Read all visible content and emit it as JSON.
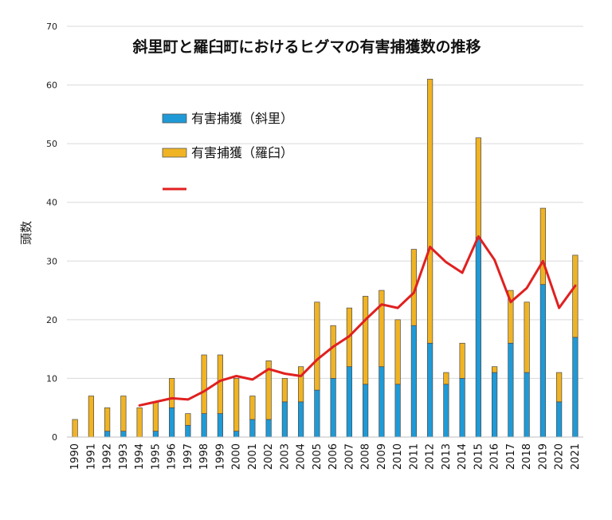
{
  "chart_data": {
    "type": "bar",
    "title": "斜里町と羅臼町におけるヒグマの有害捕獲数の推移",
    "ylabel": "頭数",
    "xlabel": "",
    "ylim": [
      0,
      70
    ],
    "yticks": [
      0,
      10,
      20,
      30,
      40,
      50,
      60,
      70
    ],
    "grid": true,
    "legend_position": "top-left",
    "categories": [
      "1990",
      "1991",
      "1992",
      "1993",
      "1994",
      "1995",
      "1996",
      "1997",
      "1998",
      "1999",
      "2000",
      "2001",
      "2002",
      "2003",
      "2004",
      "2005",
      "2006",
      "2007",
      "2008",
      "2009",
      "2010",
      "2011",
      "2012",
      "2013",
      "2014",
      "2015",
      "2016",
      "2017",
      "2018",
      "2019",
      "2020",
      "2021"
    ],
    "series": [
      {
        "name": "有害捕獲（斜里）",
        "kind": "stacked-bar",
        "color": "#1f9ad6",
        "values": [
          0,
          0,
          1,
          1,
          0,
          1,
          5,
          2,
          4,
          4,
          1,
          3,
          3,
          6,
          6,
          8,
          10,
          12,
          9,
          12,
          9,
          19,
          16,
          9,
          10,
          34,
          11,
          16,
          11,
          26,
          6,
          17
        ]
      },
      {
        "name": "有害捕獲（羅臼）",
        "kind": "stacked-bar",
        "color": "#f0b323",
        "values": [
          3,
          7,
          4,
          6,
          5,
          5,
          5,
          2,
          10,
          10,
          9,
          4,
          10,
          4,
          6,
          15,
          9,
          10,
          15,
          13,
          11,
          13,
          45,
          2,
          6,
          17,
          1,
          9,
          12,
          13,
          5,
          14
        ]
      },
      {
        "name": "",
        "kind": "line",
        "color": "#e02020",
        "start_index": 4,
        "values": [
          null,
          null,
          null,
          null,
          5.4,
          6.0,
          6.6,
          6.4,
          7.8,
          9.6,
          10.4,
          9.8,
          11.6,
          10.8,
          10.4,
          13.2,
          15.4,
          17.2,
          20.0,
          22.6,
          22.0,
          24.6,
          32.4,
          29.8,
          28.0,
          34.2,
          30.2,
          23.0,
          25.4,
          30.0,
          22.0,
          25.8
        ]
      }
    ]
  }
}
